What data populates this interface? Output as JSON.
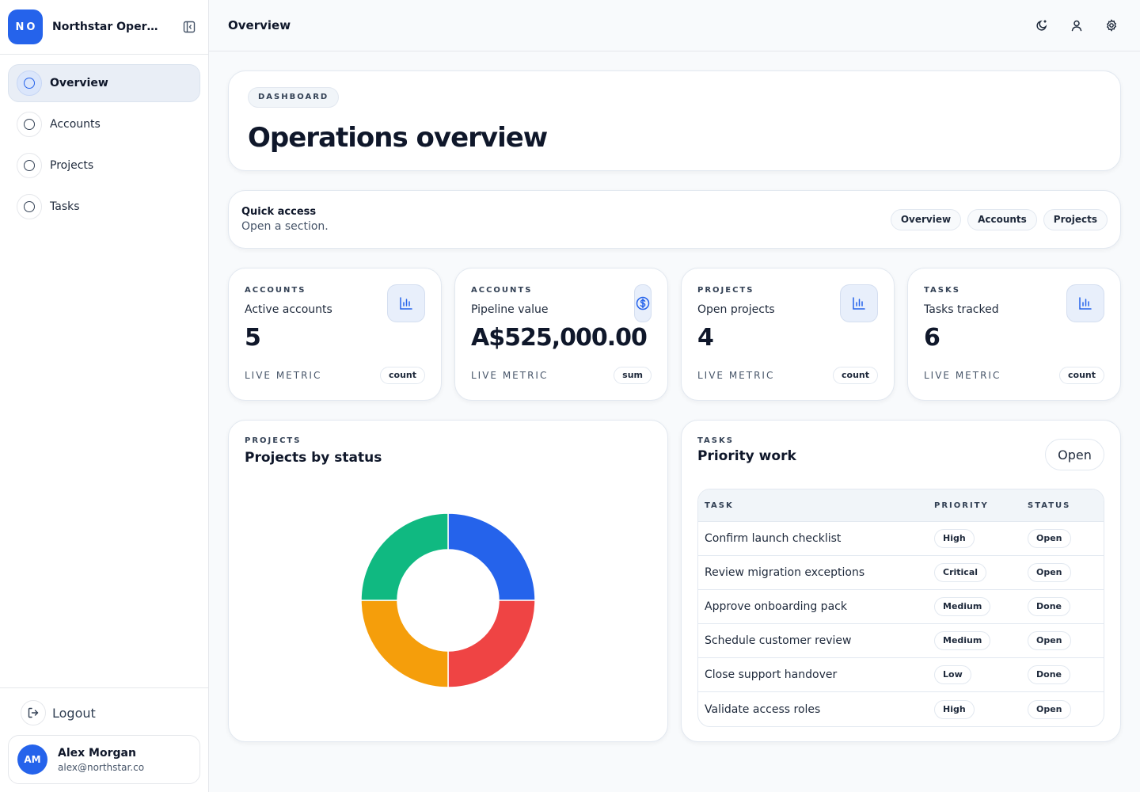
{
  "app": {
    "initials": "NO",
    "name": "Northstar Operations"
  },
  "sidebar": {
    "items": [
      {
        "label": "Overview",
        "active": true
      },
      {
        "label": "Accounts",
        "active": false
      },
      {
        "label": "Projects",
        "active": false
      },
      {
        "label": "Tasks",
        "active": false
      }
    ],
    "logout_label": "Logout",
    "user": {
      "initials": "AM",
      "name": "Alex Morgan",
      "email": "alex@northstar.co"
    }
  },
  "topbar": {
    "title": "Overview",
    "icons": [
      "moon-icon",
      "user-icon",
      "gear-icon"
    ]
  },
  "hero": {
    "tag": "DASHBOARD",
    "title": "Operations overview"
  },
  "quick_access": {
    "title": "Quick access",
    "subtitle": "Open a section.",
    "links": [
      "Overview",
      "Accounts",
      "Projects"
    ]
  },
  "metrics": [
    {
      "category": "ACCOUNTS",
      "label": "Active accounts",
      "value": "5",
      "live": "LIVE METRIC",
      "agg": "count",
      "icon": "bar-chart-icon"
    },
    {
      "category": "ACCOUNTS",
      "label": "Pipeline value",
      "value": "A$525,000.00",
      "live": "LIVE METRIC",
      "agg": "sum",
      "icon": "dollar-icon"
    },
    {
      "category": "PROJECTS",
      "label": "Open projects",
      "value": "4",
      "live": "LIVE METRIC",
      "agg": "count",
      "icon": "bar-chart-icon"
    },
    {
      "category": "TASKS",
      "label": "Tasks tracked",
      "value": "6",
      "live": "LIVE METRIC",
      "agg": "count",
      "icon": "bar-chart-icon"
    }
  ],
  "projects_chart": {
    "category": "PROJECTS",
    "title": "Projects by status"
  },
  "chart_data": {
    "type": "pie",
    "title": "Projects by status",
    "values": [
      1,
      1,
      1,
      1
    ],
    "colors": [
      "#2563eb",
      "#ef4444",
      "#f59e0b",
      "#10b981"
    ]
  },
  "priority_work": {
    "category": "TASKS",
    "title": "Priority work",
    "open_label": "Open",
    "columns": [
      "TASK",
      "PRIORITY",
      "STATUS"
    ],
    "rows": [
      {
        "task": "Confirm launch checklist",
        "priority": "High",
        "status": "Open"
      },
      {
        "task": "Review migration exceptions",
        "priority": "Critical",
        "status": "Open"
      },
      {
        "task": "Approve onboarding pack",
        "priority": "Medium",
        "status": "Done"
      },
      {
        "task": "Schedule customer review",
        "priority": "Medium",
        "status": "Open"
      },
      {
        "task": "Close support handover",
        "priority": "Low",
        "status": "Done"
      },
      {
        "task": "Validate access roles",
        "priority": "High",
        "status": "Open"
      }
    ]
  }
}
